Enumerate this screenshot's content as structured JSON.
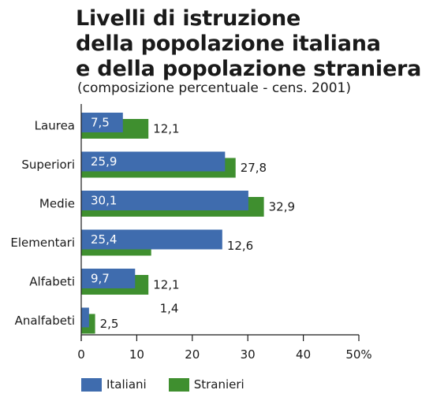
{
  "title": {
    "line1": "Livelli di istruzione",
    "line2": "della popolazione italiana",
    "line3": "e della popolazione straniera"
  },
  "subtitle": "(composizione percentuale - cens. 2001)",
  "legend": {
    "italiani": "Italiani",
    "stranieri": "Stranieri"
  },
  "colors": {
    "italiani": "#3f6cae",
    "stranieri": "#3f8f2f",
    "axis": "#1a1a1a"
  },
  "chart_data": {
    "type": "bar",
    "orientation": "horizontal",
    "title": "Livelli di istruzione della popolazione italiana e della popolazione straniera",
    "subtitle": "(composizione percentuale - cens. 2001)",
    "categories": [
      "Laurea",
      "Superiori",
      "Medie",
      "Elementari",
      "Alfabeti",
      "Analfabeti"
    ],
    "series": [
      {
        "name": "Italiani",
        "values": [
          7.5,
          25.9,
          30.1,
          25.4,
          9.7,
          1.4
        ],
        "labels": [
          "7,5",
          "25,9",
          "30,1",
          "25,4",
          "9,7",
          "1,4"
        ]
      },
      {
        "name": "Stranieri",
        "values": [
          12.1,
          27.8,
          32.9,
          12.6,
          12.1,
          2.5
        ],
        "labels": [
          "12,1",
          "27,8",
          "32,9",
          "12,6",
          "12,1",
          "2,5"
        ]
      }
    ],
    "xlim": [
      0,
      50
    ],
    "xticks": [
      "0",
      "10",
      "20",
      "30",
      "40",
      "50%"
    ],
    "grid": false,
    "legend_position": "bottom"
  }
}
